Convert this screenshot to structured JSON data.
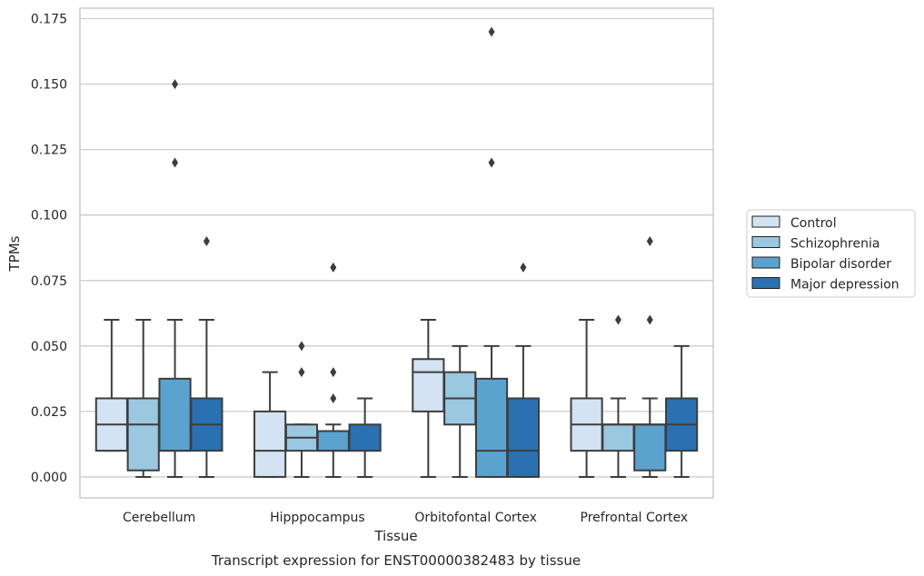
{
  "chart_data": {
    "type": "box",
    "xlabel": "Tissue",
    "ylabel": "TPMs",
    "caption": "Transcript expression for ENST00000382483 by tissue",
    "categories": [
      "Cerebellum",
      "Hipppocampus",
      "Orbitofontal Cortex",
      "Prefrontal Cortex"
    ],
    "ylim": [
      -0.008,
      0.179
    ],
    "yticks": [
      0.0,
      0.025,
      0.05,
      0.075,
      0.1,
      0.125,
      0.15,
      0.175
    ],
    "ytick_labels": [
      "0.000",
      "0.025",
      "0.050",
      "0.075",
      "0.100",
      "0.125",
      "0.150",
      "0.175"
    ],
    "grid": true,
    "legend_position": "right",
    "series": [
      {
        "name": "Control",
        "color": "#d3e3f3",
        "boxes": [
          {
            "q1": 0.01,
            "median": 0.02,
            "q3": 0.03,
            "whisker_low": 0.01,
            "whisker_high": 0.06,
            "outliers": []
          },
          {
            "q1": 0.0,
            "median": 0.01,
            "q3": 0.025,
            "whisker_low": 0.0,
            "whisker_high": 0.04,
            "outliers": []
          },
          {
            "q1": 0.025,
            "median": 0.04,
            "q3": 0.045,
            "whisker_low": 0.0,
            "whisker_high": 0.06,
            "outliers": []
          },
          {
            "q1": 0.01,
            "median": 0.02,
            "q3": 0.03,
            "whisker_low": 0.0,
            "whisker_high": 0.06,
            "outliers": []
          }
        ]
      },
      {
        "name": "Schizophrenia",
        "color": "#9ac8e0",
        "boxes": [
          {
            "q1": 0.0025,
            "median": 0.02,
            "q3": 0.03,
            "whisker_low": 0.0,
            "whisker_high": 0.06,
            "outliers": []
          },
          {
            "q1": 0.01,
            "median": 0.015,
            "q3": 0.02,
            "whisker_low": 0.0,
            "whisker_high": 0.02,
            "outliers": [
              0.04,
              0.05
            ]
          },
          {
            "q1": 0.02,
            "median": 0.03,
            "q3": 0.04,
            "whisker_low": 0.0,
            "whisker_high": 0.05,
            "outliers": []
          },
          {
            "q1": 0.01,
            "median": 0.02,
            "q3": 0.02,
            "whisker_low": 0.0,
            "whisker_high": 0.03,
            "outliers": [
              0.06
            ]
          }
        ]
      },
      {
        "name": "Bipolar disorder",
        "color": "#5ba3cf",
        "boxes": [
          {
            "q1": 0.01,
            "median": 0.01,
            "q3": 0.0375,
            "whisker_low": 0.0,
            "whisker_high": 0.06,
            "outliers": [
              0.12,
              0.15
            ]
          },
          {
            "q1": 0.01,
            "median": 0.01,
            "q3": 0.0175,
            "whisker_low": 0.0,
            "whisker_high": 0.02,
            "outliers": [
              0.03,
              0.04,
              0.08
            ]
          },
          {
            "q1": 0.0,
            "median": 0.01,
            "q3": 0.0375,
            "whisker_low": 0.0,
            "whisker_high": 0.05,
            "outliers": [
              0.12,
              0.17
            ]
          },
          {
            "q1": 0.0025,
            "median": 0.02,
            "q3": 0.02,
            "whisker_low": 0.0,
            "whisker_high": 0.03,
            "outliers": [
              0.06,
              0.09
            ]
          }
        ]
      },
      {
        "name": "Major depression",
        "color": "#2a71b2",
        "boxes": [
          {
            "q1": 0.01,
            "median": 0.02,
            "q3": 0.03,
            "whisker_low": 0.0,
            "whisker_high": 0.06,
            "outliers": [
              0.09
            ]
          },
          {
            "q1": 0.01,
            "median": 0.01,
            "q3": 0.02,
            "whisker_low": 0.0,
            "whisker_high": 0.03,
            "outliers": []
          },
          {
            "q1": 0.0,
            "median": 0.01,
            "q3": 0.03,
            "whisker_low": 0.0,
            "whisker_high": 0.05,
            "outliers": [
              0.08
            ]
          },
          {
            "q1": 0.01,
            "median": 0.02,
            "q3": 0.03,
            "whisker_low": 0.0,
            "whisker_high": 0.05,
            "outliers": []
          }
        ]
      }
    ]
  }
}
